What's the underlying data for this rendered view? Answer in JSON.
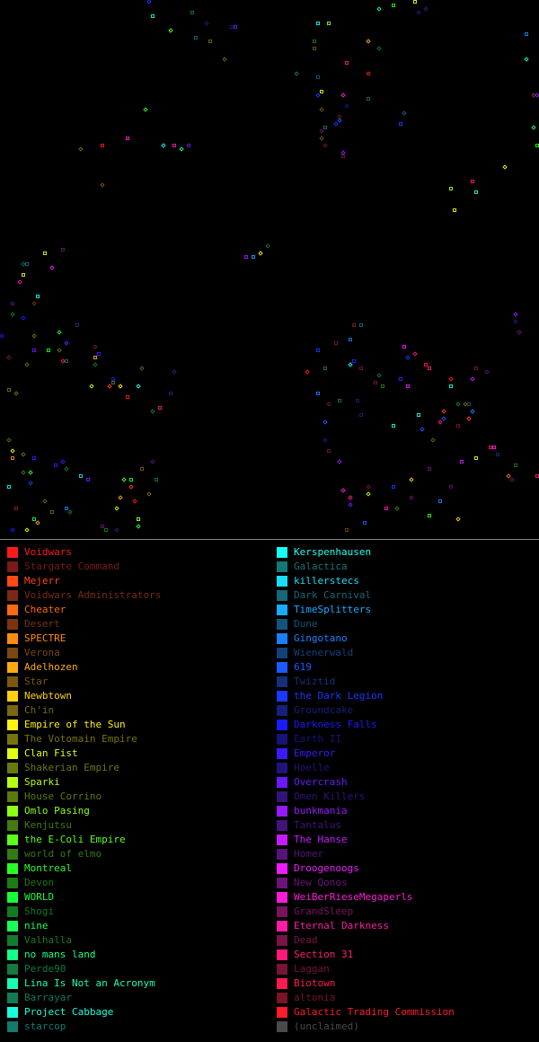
{
  "chart_data": {
    "type": "scatter",
    "title": "",
    "grid": false,
    "legend_placement": "bottom",
    "map_size": 150,
    "seed": 1337,
    "legend_left": [
      {
        "name": "Voidwars",
        "color": "#ff1a1a",
        "bright": true
      },
      {
        "name": "Stargate Command",
        "color": "#7a1a1a",
        "bright": false
      },
      {
        "name": "Mejerr",
        "color": "#ff4a14",
        "bright": true
      },
      {
        "name": "Voidwars Administrators",
        "color": "#7a2a14",
        "bright": false
      },
      {
        "name": "Cheater",
        "color": "#ff6a10",
        "bright": true
      },
      {
        "name": "Desert",
        "color": "#7a3410",
        "bright": false
      },
      {
        "name": "SPECTRE",
        "color": "#ff8c10",
        "bright": true
      },
      {
        "name": "Verona",
        "color": "#7a4810",
        "bright": false
      },
      {
        "name": "Adelhozen",
        "color": "#ffaa10",
        "bright": true
      },
      {
        "name": "Star",
        "color": "#7a5810",
        "bright": false
      },
      {
        "name": "Newbtown",
        "color": "#ffd010",
        "bright": true
      },
      {
        "name": "Ch'in",
        "color": "#7a6810",
        "bright": false
      },
      {
        "name": "Empire of the Sun",
        "color": "#fff012",
        "bright": true
      },
      {
        "name": "The Votomain Empire",
        "color": "#767410",
        "bright": false
      },
      {
        "name": "Clan Fist",
        "color": "#e0ff14",
        "bright": true
      },
      {
        "name": "Shakerian Empire",
        "color": "#667a10",
        "bright": false
      },
      {
        "name": "Sparki",
        "color": "#b6ff14",
        "bright": true
      },
      {
        "name": "House Corrino",
        "color": "#587a10",
        "bright": false
      },
      {
        "name": "Omlo Pasing",
        "color": "#8cff18",
        "bright": true
      },
      {
        "name": "Kenjutsu",
        "color": "#447a10",
        "bright": false
      },
      {
        "name": "the E-Coli Empire",
        "color": "#5aff1c",
        "bright": true
      },
      {
        "name": "world of elmo",
        "color": "#347a14",
        "bright": false
      },
      {
        "name": "Montreal",
        "color": "#2aff24",
        "bright": true
      },
      {
        "name": "Devon",
        "color": "#1c7a18",
        "bright": false
      },
      {
        "name": "WORLD",
        "color": "#18ff38",
        "bright": true
      },
      {
        "name": "Shogi",
        "color": "#147a20",
        "bright": false
      },
      {
        "name": "nine",
        "color": "#18ff5a",
        "bright": true
      },
      {
        "name": "Valhalla",
        "color": "#147a2c",
        "bright": false
      },
      {
        "name": "no mans land",
        "color": "#18ff86",
        "bright": true
      },
      {
        "name": "Perde90",
        "color": "#147a40",
        "bright": false
      },
      {
        "name": "Lina Is Not an Acronym",
        "color": "#18ffb4",
        "bright": true
      },
      {
        "name": "Barrayar",
        "color": "#147a56",
        "bright": false
      },
      {
        "name": "Project Cabbage",
        "color": "#18ffe0",
        "bright": true
      },
      {
        "name": "starcop",
        "color": "#147a6a",
        "bright": false
      }
    ],
    "legend_right": [
      {
        "name": "Kerspenhausen",
        "color": "#18fff4",
        "bright": true
      },
      {
        "name": "Galactica",
        "color": "#147676",
        "bright": false
      },
      {
        "name": "killerstecs",
        "color": "#18def8",
        "bright": true
      },
      {
        "name": "Dark Carnival",
        "color": "#146878",
        "bright": false
      },
      {
        "name": "TimeSplitters",
        "color": "#18aaff",
        "bright": true
      },
      {
        "name": "Dune",
        "color": "#14547a",
        "bright": false
      },
      {
        "name": "Gingotano",
        "color": "#1a80ff",
        "bright": true
      },
      {
        "name": "Wienerwald",
        "color": "#14407a",
        "bright": false
      },
      {
        "name": "619",
        "color": "#1a5aff",
        "bright": true
      },
      {
        "name": "Twiztid",
        "color": "#14307a",
        "bright": false
      },
      {
        "name": "the Dark Legion",
        "color": "#1a38ff",
        "bright": true
      },
      {
        "name": "Groundcake",
        "color": "#14207a",
        "bright": false
      },
      {
        "name": "Darkness Falls",
        "color": "#1a1aff",
        "bright": true
      },
      {
        "name": "Earth II",
        "color": "#16147a",
        "bright": false
      },
      {
        "name": "Emperor",
        "color": "#3a1aff",
        "bright": true
      },
      {
        "name": "Hoelle",
        "color": "#20147a",
        "bright": false
      },
      {
        "name": "Overcrash",
        "color": "#6a1aff",
        "bright": true
      },
      {
        "name": "Omen Killers",
        "color": "#30147a",
        "bright": false
      },
      {
        "name": "bunkmania",
        "color": "#961aff",
        "bright": true
      },
      {
        "name": "Tantalus",
        "color": "#42147a",
        "bright": false
      },
      {
        "name": "The Hanse",
        "color": "#c81aff",
        "bright": true
      },
      {
        "name": "Homer",
        "color": "#56147a",
        "bright": false
      },
      {
        "name": "Droogenoogs",
        "color": "#f01aff",
        "bright": true
      },
      {
        "name": "New Qonos",
        "color": "#6a1478",
        "bright": false
      },
      {
        "name": "WeiBerRieseMegaperls",
        "color": "#ff1ad8",
        "bright": true
      },
      {
        "name": "GrandSleep",
        "color": "#78145e",
        "bright": false
      },
      {
        "name": "Eternal Darkness",
        "color": "#ff1aa8",
        "bright": true
      },
      {
        "name": "Dead",
        "color": "#781448",
        "bright": false
      },
      {
        "name": "Section 31",
        "color": "#ff1a7a",
        "bright": true
      },
      {
        "name": "Laggan",
        "color": "#781436",
        "bright": false
      },
      {
        "name": "Biotown",
        "color": "#ff1a50",
        "bright": true
      },
      {
        "name": "altonia",
        "color": "#781426",
        "bright": false
      },
      {
        "name": "Galactic Trading Commission",
        "color": "#ff1a2c",
        "bright": true
      },
      {
        "name": "(unclaimed)",
        "color": "#4a4a4a",
        "bright": false
      }
    ]
  }
}
